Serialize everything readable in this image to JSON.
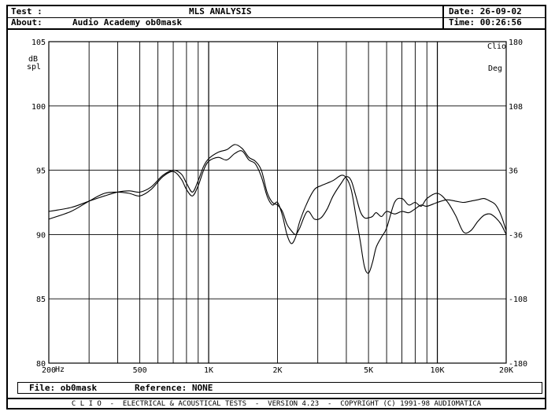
{
  "header": {
    "test_label": "Test :",
    "title": "MLS ANALYSIS",
    "date_label": "Date: 26-09-02",
    "about_label": "About:",
    "about_value": "Audio Academy ob0mask",
    "time_label": "Time: 00:26:56"
  },
  "file_bar": {
    "file_label": "File: ob0mask",
    "reference_label": "Reference: NONE"
  },
  "footer": {
    "text": "C L I O  -  ELECTRICAL & ACOUSTICAL TESTS  -  VERSION 4.23  -  COPYRIGHT (C) 1991-98 AUDIOMATICA"
  },
  "chart_data": {
    "type": "line",
    "x_scale": "log",
    "xlim": [
      200,
      20000
    ],
    "ylim": [
      80,
      105
    ],
    "y2lim": [
      -180,
      180
    ],
    "grid": true,
    "x_tick_labels": [
      {
        "x": 200,
        "label": "200"
      },
      {
        "x": 500,
        "label": "500"
      },
      {
        "x": 1000,
        "label": "1K"
      },
      {
        "x": 2000,
        "label": "2K"
      },
      {
        "x": 5000,
        "label": "5K"
      },
      {
        "x": 10000,
        "label": "10K"
      },
      {
        "x": 20000,
        "label": "20K"
      }
    ],
    "x_unit": "Hz",
    "y_ticks": [
      80,
      85,
      90,
      95,
      100,
      105
    ],
    "y2_ticks": [
      -180,
      -108,
      -36,
      36,
      108,
      180
    ],
    "y_unit_line1": "dB",
    "y_unit_line2": "spl",
    "y2_unit": "Deg",
    "corner_label": "Clio",
    "series": [
      {
        "x": [
          200,
          250,
          300,
          350,
          400,
          450,
          500,
          560,
          630,
          700,
          760,
          800,
          850,
          900,
          950,
          1000,
          1100,
          1200,
          1300,
          1400,
          1500,
          1600,
          1700,
          1800,
          1900,
          2000,
          2100,
          2200,
          2300,
          2400,
          2500,
          2700,
          2900,
          3100,
          3300,
          3500,
          3800,
          4000,
          4200,
          4400,
          4600,
          4800,
          5000,
          5200,
          5400,
          5700,
          6000,
          6500,
          7000,
          7500,
          8000,
          8500,
          9000,
          10000,
          11000,
          12000,
          13000,
          14000,
          15000,
          16000,
          17000,
          18000,
          19000,
          20000
        ],
        "values": [
          91.2,
          91.8,
          92.6,
          93.2,
          93.3,
          93.2,
          93.0,
          93.5,
          94.5,
          94.9,
          94.3,
          93.5,
          93.0,
          93.8,
          95.0,
          95.7,
          96.0,
          95.8,
          96.3,
          96.5,
          95.8,
          95.5,
          94.5,
          93.0,
          92.3,
          92.5,
          91.5,
          90.0,
          89.3,
          89.8,
          91.0,
          92.5,
          93.5,
          93.8,
          94.0,
          94.2,
          94.6,
          94.4,
          93.5,
          91.5,
          89.5,
          87.5,
          87.0,
          87.8,
          89.0,
          89.8,
          90.5,
          92.5,
          92.8,
          92.3,
          92.5,
          92.2,
          92.8,
          93.2,
          92.6,
          91.5,
          90.2,
          90.3,
          91.0,
          91.5,
          91.6,
          91.3,
          90.8,
          90.0
        ]
      },
      {
        "x": [
          200,
          250,
          300,
          350,
          400,
          450,
          500,
          560,
          630,
          700,
          760,
          800,
          850,
          900,
          950,
          1000,
          1100,
          1200,
          1300,
          1400,
          1500,
          1600,
          1700,
          1800,
          1900,
          2000,
          2100,
          2200,
          2300,
          2400,
          2500,
          2700,
          2900,
          3100,
          3300,
          3500,
          3800,
          4000,
          4200,
          4400,
          4600,
          4800,
          5000,
          5200,
          5400,
          5700,
          6000,
          6500,
          7000,
          7500,
          8000,
          8500,
          9000,
          10000,
          11000,
          12000,
          13000,
          14000,
          15000,
          16000,
          17000,
          18000,
          19000,
          20000
        ],
        "values": [
          91.8,
          92.1,
          92.6,
          93.0,
          93.3,
          93.4,
          93.3,
          93.7,
          94.6,
          95.0,
          94.7,
          94.0,
          93.3,
          94.2,
          95.3,
          95.9,
          96.4,
          96.6,
          97.0,
          96.7,
          96.0,
          95.7,
          95.0,
          93.3,
          92.5,
          92.3,
          91.8,
          90.8,
          90.3,
          90.0,
          90.5,
          91.8,
          91.2,
          91.3,
          92.0,
          93.0,
          94.0,
          94.5,
          94.2,
          93.0,
          91.8,
          91.3,
          91.3,
          91.4,
          91.7,
          91.4,
          91.8,
          91.6,
          91.8,
          91.7,
          92.0,
          92.3,
          92.2,
          92.5,
          92.7,
          92.6,
          92.5,
          92.6,
          92.7,
          92.8,
          92.6,
          92.3,
          91.5,
          90.3
        ]
      }
    ]
  }
}
